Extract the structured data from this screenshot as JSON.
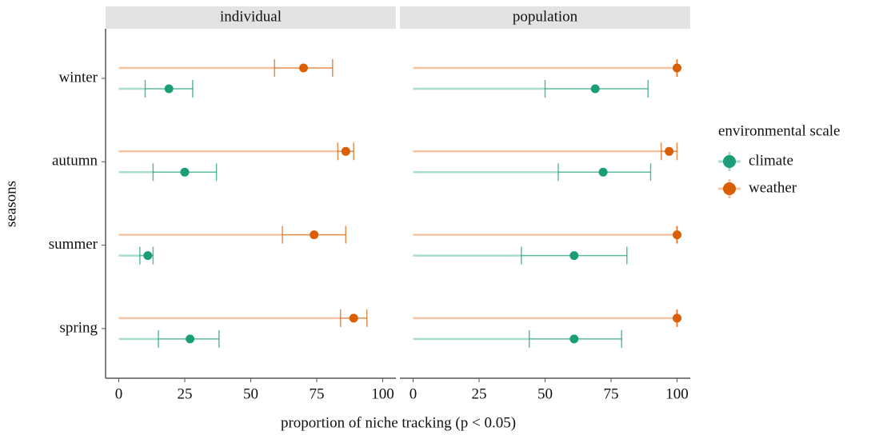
{
  "chart_data": {
    "type": "dot-errorbar",
    "xlabel": "proportion of niche tracking (p < 0.05)",
    "ylabel": "seasons",
    "legend_title": "environmental scale",
    "categories": [
      "winter",
      "autumn",
      "summer",
      "spring"
    ],
    "xlim": [
      -5,
      105
    ],
    "xticks": [
      0,
      25,
      50,
      75,
      100
    ],
    "facets": [
      {
        "name": "individual",
        "series": [
          {
            "name": "climate",
            "color": "#1b9e77",
            "values": [
              19,
              25,
              11,
              27
            ],
            "lower": [
              10,
              13,
              8,
              15
            ],
            "upper": [
              28,
              37,
              13,
              38
            ]
          },
          {
            "name": "weather",
            "color": "#d95f02",
            "values": [
              70,
              86,
              74,
              89
            ],
            "lower": [
              59,
              83,
              62,
              84
            ],
            "upper": [
              81,
              89,
              86,
              94
            ]
          }
        ]
      },
      {
        "name": "population",
        "series": [
          {
            "name": "climate",
            "color": "#1b9e77",
            "values": [
              69,
              72,
              61,
              61
            ],
            "lower": [
              50,
              55,
              41,
              44
            ],
            "upper": [
              89,
              90,
              81,
              79
            ]
          },
          {
            "name": "weather",
            "color": "#d95f02",
            "values": [
              100,
              97,
              100,
              100
            ],
            "lower": [
              100,
              94,
              100,
              100
            ],
            "upper": [
              100,
              100,
              100,
              100
            ]
          }
        ]
      }
    ]
  }
}
